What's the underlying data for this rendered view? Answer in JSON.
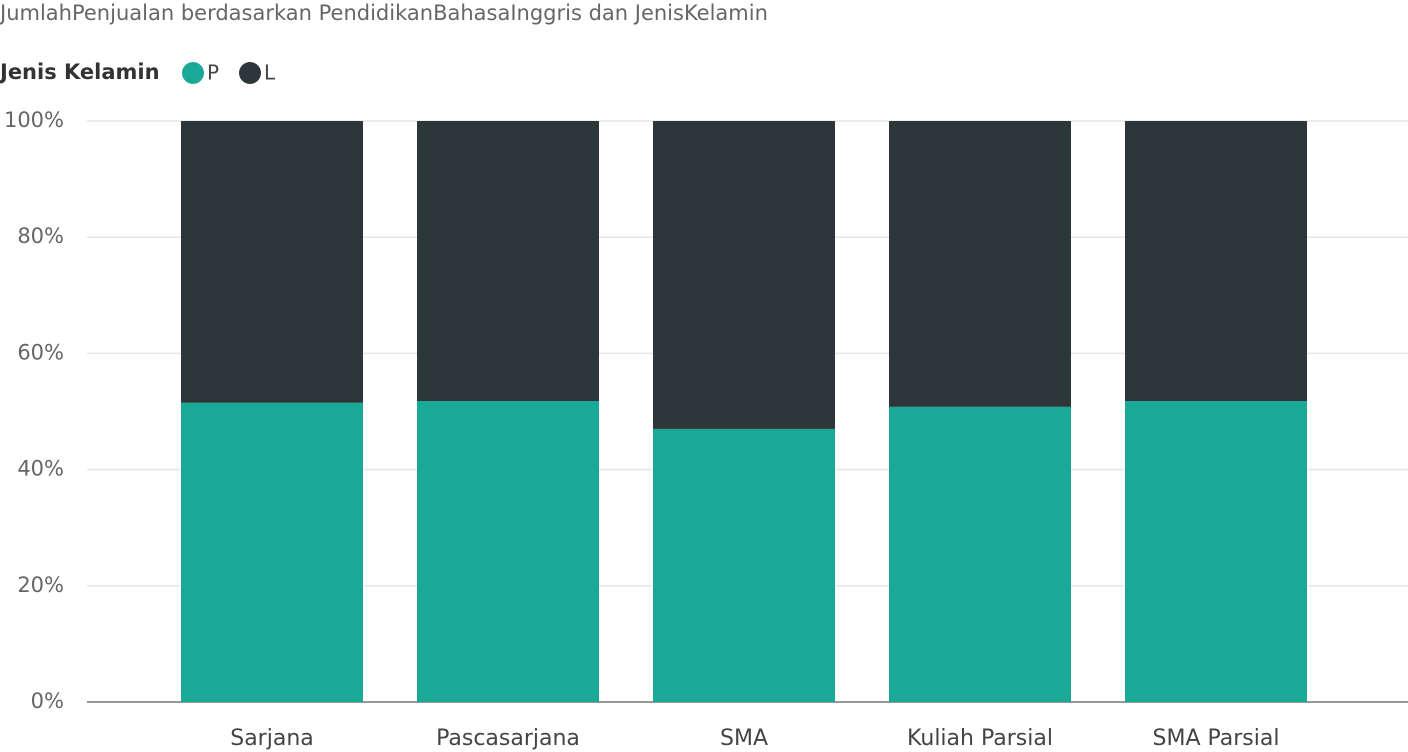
{
  "chart_data": {
    "type": "stacked_bar_100",
    "title": "JumlahPenjualan berdasarkan PendidikanBahasaInggris dan JenisKelamin",
    "legend_title": "Jenis Kelamin",
    "categories": [
      "Sarjana",
      "Pascasarjana",
      "SMA",
      "Kuliah Parsial",
      "SMA Parsial"
    ],
    "series": [
      {
        "name": "P",
        "color": "#1aa997",
        "values": [
          51.5,
          51.8,
          47.0,
          50.8,
          51.8
        ]
      },
      {
        "name": "L",
        "color": "#2d3639",
        "values": [
          48.5,
          48.2,
          53.0,
          49.2,
          48.2
        ]
      }
    ],
    "ylim": [
      0,
      100
    ],
    "yticks": [
      {
        "value": 0,
        "label": "0%"
      },
      {
        "value": 20,
        "label": "20%"
      },
      {
        "value": 40,
        "label": "40%"
      },
      {
        "value": 60,
        "label": "60%"
      },
      {
        "value": 80,
        "label": "80%"
      },
      {
        "value": 100,
        "label": "100%"
      }
    ],
    "grid": true,
    "legend": "top-left"
  }
}
